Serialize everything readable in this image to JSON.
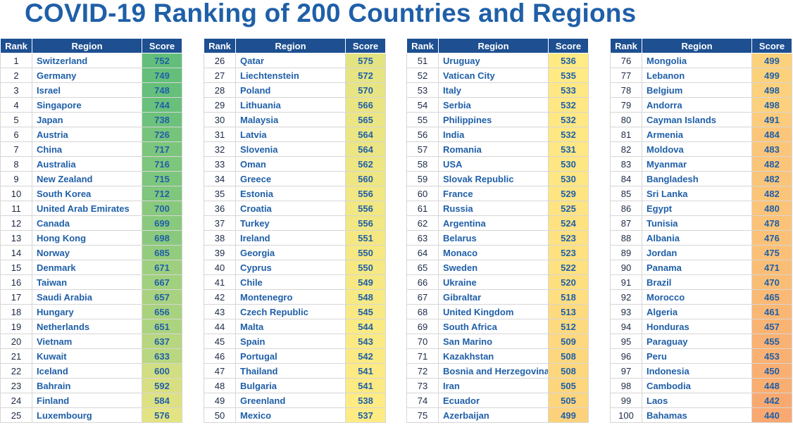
{
  "title": "COVID-19 Ranking of 200 Countries and Regions",
  "headers": {
    "rank": "Rank",
    "region": "Region",
    "score": "Score"
  },
  "chart_data": {
    "type": "table",
    "title": "COVID-19 Ranking of 200 Countries and Regions",
    "columns": [
      "Rank",
      "Region",
      "Score"
    ],
    "color_scale": {
      "high": "#63be7b",
      "mid": "#ffeb84",
      "low": "#f8a870"
    },
    "rows": [
      [
        1,
        "Switzerland",
        752
      ],
      [
        2,
        "Germany",
        749
      ],
      [
        3,
        "Israel",
        748
      ],
      [
        4,
        "Singapore",
        744
      ],
      [
        5,
        "Japan",
        738
      ],
      [
        6,
        "Austria",
        726
      ],
      [
        7,
        "China",
        717
      ],
      [
        8,
        "Australia",
        716
      ],
      [
        9,
        "New Zealand",
        715
      ],
      [
        10,
        "South Korea",
        712
      ],
      [
        11,
        "United Arab Emirates",
        700
      ],
      [
        12,
        "Canada",
        699
      ],
      [
        13,
        "Hong Kong",
        698
      ],
      [
        14,
        "Norway",
        685
      ],
      [
        15,
        "Denmark",
        671
      ],
      [
        16,
        "Taiwan",
        667
      ],
      [
        17,
        "Saudi Arabia",
        657
      ],
      [
        18,
        "Hungary",
        656
      ],
      [
        19,
        "Netherlands",
        651
      ],
      [
        20,
        "Vietnam",
        637
      ],
      [
        21,
        "Kuwait",
        633
      ],
      [
        22,
        "Iceland",
        600
      ],
      [
        23,
        "Bahrain",
        592
      ],
      [
        24,
        "Finland",
        584
      ],
      [
        25,
        "Luxembourg",
        576
      ],
      [
        26,
        "Qatar",
        575
      ],
      [
        27,
        "Liechtenstein",
        572
      ],
      [
        28,
        "Poland",
        570
      ],
      [
        29,
        "Lithuania",
        566
      ],
      [
        30,
        "Malaysia",
        565
      ],
      [
        31,
        "Latvia",
        564
      ],
      [
        32,
        "Slovenia",
        564
      ],
      [
        33,
        "Oman",
        562
      ],
      [
        34,
        "Greece",
        560
      ],
      [
        35,
        "Estonia",
        556
      ],
      [
        36,
        "Croatia",
        556
      ],
      [
        37,
        "Turkey",
        556
      ],
      [
        38,
        "Ireland",
        551
      ],
      [
        39,
        "Georgia",
        550
      ],
      [
        40,
        "Cyprus",
        550
      ],
      [
        41,
        "Chile",
        549
      ],
      [
        42,
        "Montenegro",
        548
      ],
      [
        43,
        "Czech Republic",
        545
      ],
      [
        44,
        "Malta",
        544
      ],
      [
        45,
        "Spain",
        543
      ],
      [
        46,
        "Portugal",
        542
      ],
      [
        47,
        "Thailand",
        541
      ],
      [
        48,
        "Bulgaria",
        541
      ],
      [
        49,
        "Greenland",
        538
      ],
      [
        50,
        "Mexico",
        537
      ],
      [
        51,
        "Uruguay",
        536
      ],
      [
        52,
        "Vatican City",
        535
      ],
      [
        53,
        "Italy",
        533
      ],
      [
        54,
        "Serbia",
        532
      ],
      [
        55,
        "Philippines",
        532
      ],
      [
        56,
        "India",
        532
      ],
      [
        57,
        "Romania",
        531
      ],
      [
        58,
        "USA",
        530
      ],
      [
        59,
        "Slovak Republic",
        530
      ],
      [
        60,
        "France",
        529
      ],
      [
        61,
        "Russia",
        525
      ],
      [
        62,
        "Argentina",
        524
      ],
      [
        63,
        "Belarus",
        523
      ],
      [
        64,
        "Monaco",
        523
      ],
      [
        65,
        "Sweden",
        522
      ],
      [
        66,
        "Ukraine",
        520
      ],
      [
        67,
        "Gibraltar",
        518
      ],
      [
        68,
        "United Kingdom",
        513
      ],
      [
        69,
        "South Africa",
        512
      ],
      [
        70,
        "San Marino",
        509
      ],
      [
        71,
        "Kazakhstan",
        508
      ],
      [
        72,
        "Bosnia and Herzegovina",
        508
      ],
      [
        73,
        "Iran",
        505
      ],
      [
        74,
        "Ecuador",
        505
      ],
      [
        75,
        "Azerbaijan",
        499
      ],
      [
        76,
        "Mongolia",
        499
      ],
      [
        77,
        "Lebanon",
        499
      ],
      [
        78,
        "Belgium",
        498
      ],
      [
        79,
        "Andorra",
        498
      ],
      [
        80,
        "Cayman Islands",
        491
      ],
      [
        81,
        "Armenia",
        484
      ],
      [
        82,
        "Moldova",
        483
      ],
      [
        83,
        "Myanmar",
        482
      ],
      [
        84,
        "Bangladesh",
        482
      ],
      [
        85,
        "Sri Lanka",
        482
      ],
      [
        86,
        "Egypt",
        480
      ],
      [
        87,
        "Tunisia",
        478
      ],
      [
        88,
        "Albania",
        476
      ],
      [
        89,
        "Jordan",
        475
      ],
      [
        90,
        "Panama",
        471
      ],
      [
        91,
        "Brazil",
        470
      ],
      [
        92,
        "Morocco",
        465
      ],
      [
        93,
        "Algeria",
        461
      ],
      [
        94,
        "Honduras",
        457
      ],
      [
        95,
        "Paraguay",
        455
      ],
      [
        96,
        "Peru",
        453
      ],
      [
        97,
        "Indonesia",
        450
      ],
      [
        98,
        "Cambodia",
        448
      ],
      [
        99,
        "Laos",
        442
      ],
      [
        100,
        "Bahamas",
        440
      ]
    ]
  }
}
